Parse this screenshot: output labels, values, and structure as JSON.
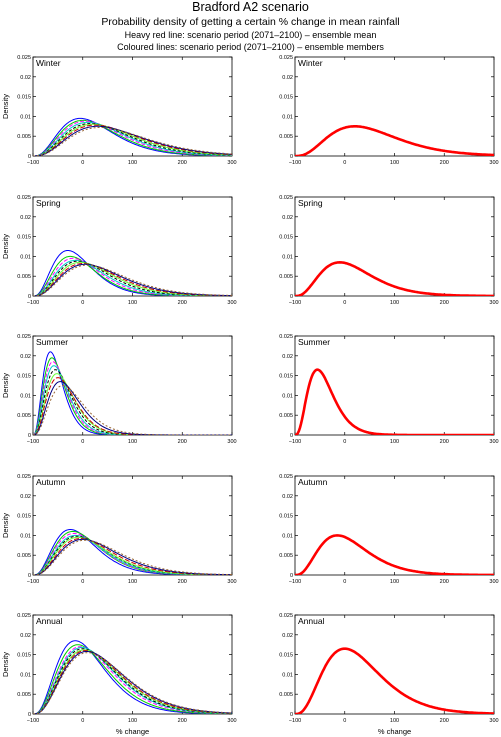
{
  "header": {
    "title": "Bradford A2 scenario",
    "subtitle": "Probability density of getting a certain % change in mean rainfall",
    "legend_mean": "Heavy red line: scenario period (2071–2100) – ensemble mean",
    "legend_members": "Coloured lines: scenario period (2071–2100) – ensemble members"
  },
  "axis": {
    "ylabel": "Density",
    "xlabel": "% change",
    "xlim": [
      -100,
      300
    ],
    "ylim": [
      0,
      0.025
    ],
    "xticks": [
      "−100",
      "0",
      "100",
      "200",
      "300"
    ],
    "yticks": [
      "0",
      "0.005",
      "0.01",
      "0.015",
      "0.02",
      "0.025"
    ]
  },
  "colors": {
    "mean": "#ff0000",
    "members": [
      "#0000ff",
      "#00cc00",
      "#ff00ff",
      "#00cccc",
      "#000000",
      "#66ff33",
      "#cc0000",
      "#000080",
      "#996633"
    ]
  },
  "chart_data": [
    {
      "type": "line",
      "panel": "members",
      "season": "Winter",
      "mode": 20,
      "peak": 0.0075,
      "members": [
        {
          "mode": -5,
          "peak": 0.0095
        },
        {
          "mode": 0,
          "peak": 0.009
        },
        {
          "mode": 5,
          "peak": 0.0088
        },
        {
          "mode": 10,
          "peak": 0.0085
        },
        {
          "mode": 15,
          "peak": 0.0082
        },
        {
          "mode": 20,
          "peak": 0.008
        },
        {
          "mode": 25,
          "peak": 0.0078
        },
        {
          "mode": 30,
          "peak": 0.0075
        },
        {
          "mode": 35,
          "peak": 0.0072
        }
      ]
    },
    {
      "type": "line",
      "panel": "mean",
      "season": "Winter",
      "mode": 20,
      "peak": 0.0075
    },
    {
      "type": "line",
      "panel": "members",
      "season": "Spring",
      "mode": -10,
      "peak": 0.0085,
      "members": [
        {
          "mode": -30,
          "peak": 0.0115
        },
        {
          "mode": -25,
          "peak": 0.01
        },
        {
          "mode": -20,
          "peak": 0.0095
        },
        {
          "mode": -15,
          "peak": 0.009
        },
        {
          "mode": -10,
          "peak": 0.0088
        },
        {
          "mode": -5,
          "peak": 0.0085
        },
        {
          "mode": 0,
          "peak": 0.0082
        },
        {
          "mode": 5,
          "peak": 0.008
        },
        {
          "mode": 10,
          "peak": 0.0078
        }
      ]
    },
    {
      "type": "line",
      "panel": "mean",
      "season": "Spring",
      "mode": -10,
      "peak": 0.0085
    },
    {
      "type": "line",
      "panel": "members",
      "season": "Summer",
      "mode": -55,
      "peak": 0.0165,
      "members": [
        {
          "mode": -65,
          "peak": 0.021
        },
        {
          "mode": -62,
          "peak": 0.0195
        },
        {
          "mode": -60,
          "peak": 0.0185
        },
        {
          "mode": -58,
          "peak": 0.0175
        },
        {
          "mode": -55,
          "peak": 0.0165
        },
        {
          "mode": -52,
          "peak": 0.0155
        },
        {
          "mode": -50,
          "peak": 0.0145
        },
        {
          "mode": -45,
          "peak": 0.0135
        },
        {
          "mode": -40,
          "peak": 0.0125
        }
      ]
    },
    {
      "type": "line",
      "panel": "mean",
      "season": "Summer",
      "mode": -55,
      "peak": 0.0165
    },
    {
      "type": "line",
      "panel": "members",
      "season": "Autumn",
      "mode": -15,
      "peak": 0.01,
      "members": [
        {
          "mode": -25,
          "peak": 0.0115
        },
        {
          "mode": -20,
          "peak": 0.011
        },
        {
          "mode": -18,
          "peak": 0.0105
        },
        {
          "mode": -15,
          "peak": 0.01
        },
        {
          "mode": -12,
          "peak": 0.0098
        },
        {
          "mode": -10,
          "peak": 0.0095
        },
        {
          "mode": -5,
          "peak": 0.0092
        },
        {
          "mode": 0,
          "peak": 0.009
        },
        {
          "mode": 5,
          "peak": 0.0088
        }
      ]
    },
    {
      "type": "line",
      "panel": "mean",
      "season": "Autumn",
      "mode": -15,
      "peak": 0.01
    },
    {
      "type": "line",
      "panel": "members",
      "season": "Annual",
      "mode": 0,
      "peak": 0.0165,
      "members": [
        {
          "mode": -15,
          "peak": 0.0185
        },
        {
          "mode": -10,
          "peak": 0.0175
        },
        {
          "mode": -5,
          "peak": 0.017
        },
        {
          "mode": -2,
          "peak": 0.0168
        },
        {
          "mode": 0,
          "peak": 0.0165
        },
        {
          "mode": 3,
          "peak": 0.0162
        },
        {
          "mode": 5,
          "peak": 0.016
        },
        {
          "mode": 8,
          "peak": 0.0158
        },
        {
          "mode": 10,
          "peak": 0.0155
        }
      ]
    },
    {
      "type": "line",
      "panel": "mean",
      "season": "Annual",
      "mode": 0,
      "peak": 0.0165
    }
  ]
}
